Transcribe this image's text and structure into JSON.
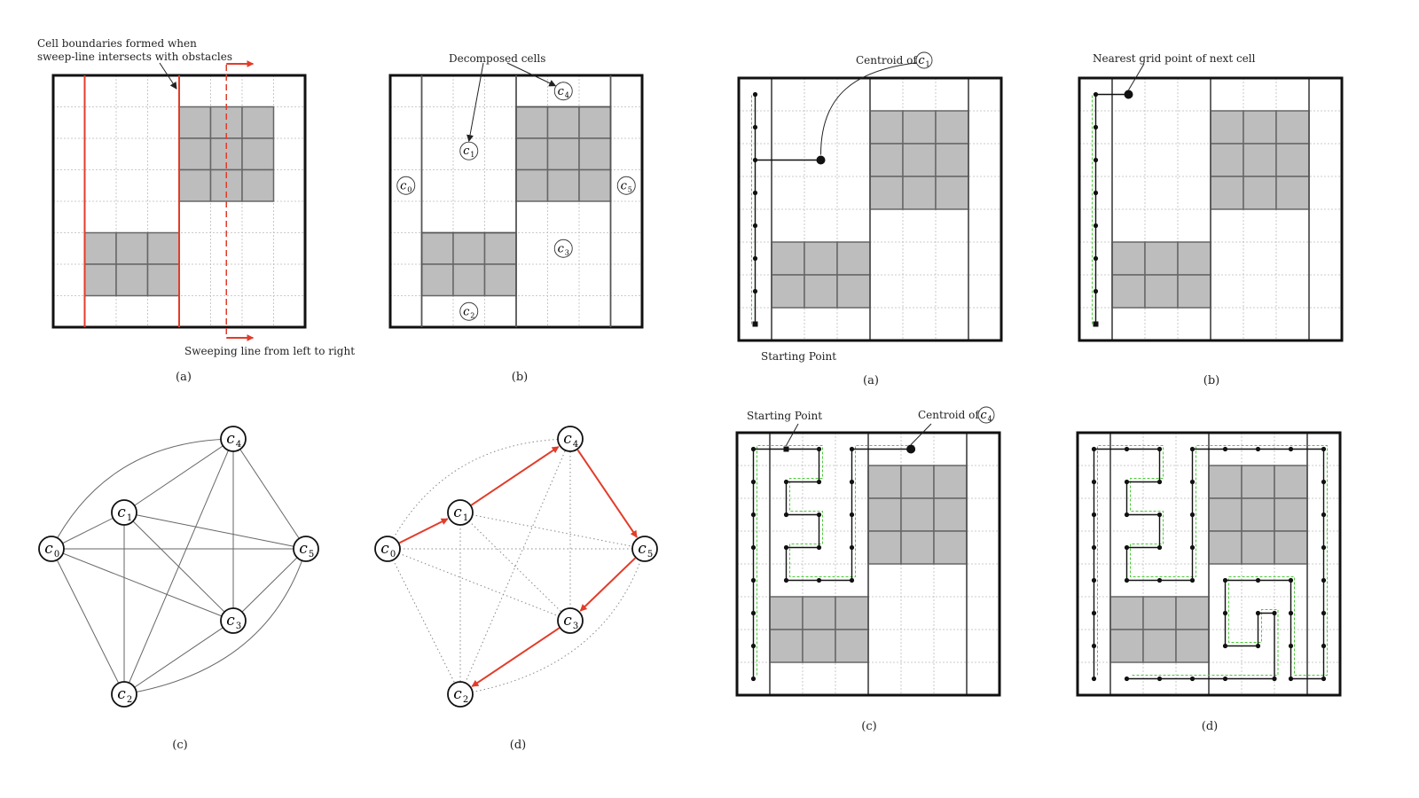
{
  "figure_left": {
    "captions": {
      "a": "(a)",
      "b": "(b)",
      "c": "(c)",
      "d": "(d)"
    },
    "annotations": {
      "cell_boundaries_line1": "Cell boundaries formed when",
      "cell_boundaries_line2": "sweep-line intersects with obstacles",
      "sweeping_line": "Sweeping line from left to right",
      "decomposed_cells": "Decomposed cells"
    },
    "cells": [
      "c0",
      "c1",
      "c2",
      "c3",
      "c4",
      "c5"
    ],
    "graph_nodes": [
      {
        "id": "c0",
        "letter": "c",
        "sub": "0"
      },
      {
        "id": "c1",
        "letter": "c",
        "sub": "1"
      },
      {
        "id": "c2",
        "letter": "c",
        "sub": "2"
      },
      {
        "id": "c3",
        "letter": "c",
        "sub": "3"
      },
      {
        "id": "c4",
        "letter": "c",
        "sub": "4"
      },
      {
        "id": "c5",
        "letter": "c",
        "sub": "5"
      }
    ],
    "graph_edges": [
      [
        "c0",
        "c1"
      ],
      [
        "c0",
        "c2"
      ],
      [
        "c0",
        "c3"
      ],
      [
        "c0",
        "c4"
      ],
      [
        "c0",
        "c5"
      ],
      [
        "c1",
        "c2"
      ],
      [
        "c1",
        "c3"
      ],
      [
        "c1",
        "c4"
      ],
      [
        "c1",
        "c5"
      ],
      [
        "c2",
        "c3"
      ],
      [
        "c2",
        "c4"
      ],
      [
        "c2",
        "c5"
      ],
      [
        "c3",
        "c4"
      ],
      [
        "c3",
        "c5"
      ],
      [
        "c4",
        "c5"
      ]
    ],
    "tour": [
      "c0",
      "c1",
      "c4",
      "c5",
      "c3",
      "c2"
    ],
    "colors": {
      "highlight": "#e23c2a",
      "obstacle": "#bdbdbd",
      "grid": "#bbbbbb"
    }
  },
  "figure_right": {
    "captions": {
      "a": "(a)",
      "b": "(b)",
      "c": "(c)",
      "d": "(d)"
    },
    "annotations": {
      "centroid_of": "Centroid of",
      "centroid_a_cell": "c1",
      "centroid_c_cell": "c4",
      "starting_point": "Starting Point",
      "nearest_grid_point": "Nearest grid point of next cell"
    },
    "colors": {
      "path": "#111111",
      "coverage": "#4cc93a"
    }
  }
}
